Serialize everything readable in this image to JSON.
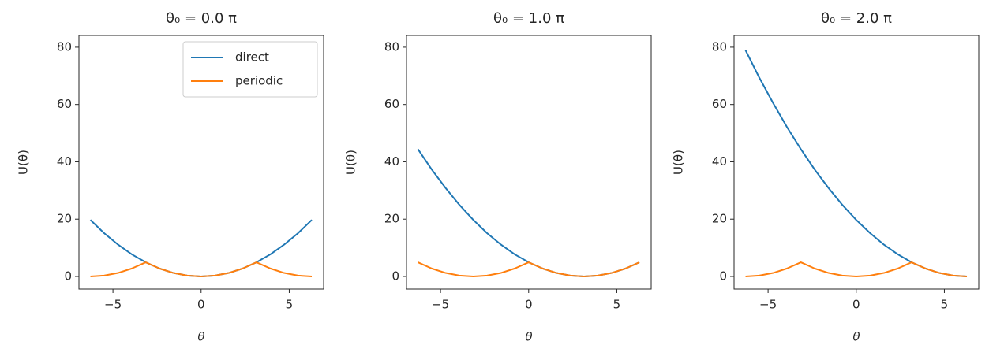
{
  "chart_data": [
    {
      "type": "line",
      "title": "θ₀ = 0.0 π",
      "xlabel": "θ",
      "ylabel": "U(θ)",
      "x": [
        -6.28,
        -5.5,
        -4.71,
        -3.93,
        -3.14,
        -2.36,
        -1.57,
        -0.79,
        0,
        0.79,
        1.57,
        2.36,
        3.14,
        3.93,
        4.71,
        5.5,
        6.28
      ],
      "series": [
        {
          "name": "direct",
          "color": "#1f77b4",
          "values": [
            19.74,
            15.11,
            11.1,
            7.71,
            4.93,
            2.78,
            1.23,
            0.31,
            0,
            0.31,
            1.23,
            2.78,
            4.93,
            7.71,
            11.1,
            15.11,
            19.74
          ]
        },
        {
          "name": "periodic",
          "color": "#ff7f0e",
          "values": [
            0,
            0.31,
            1.23,
            2.78,
            4.93,
            2.78,
            1.23,
            0.31,
            0,
            0.31,
            1.23,
            2.78,
            4.93,
            2.78,
            1.23,
            0.31,
            0
          ]
        }
      ],
      "xlim": [
        -6.93,
        6.95
      ],
      "ylim": [
        -4.4,
        84.1
      ],
      "xticks": [
        {
          "value": -5,
          "label": "−5"
        },
        0,
        5
      ],
      "yticks": [
        0,
        20,
        40,
        60,
        80
      ],
      "legend": "upper right"
    },
    {
      "type": "line",
      "title": "θ₀ = 1.0 π",
      "xlabel": "θ",
      "ylabel": "U(θ)",
      "x": [
        -6.28,
        -5.5,
        -4.71,
        -3.93,
        -3.14,
        -2.36,
        -1.57,
        -0.79,
        0,
        0.79,
        1.57,
        2.36,
        3.14,
        3.93,
        4.71,
        5.5,
        6.28
      ],
      "series": [
        {
          "name": "direct",
          "color": "#1f77b4",
          "values": [
            44.41,
            37.32,
            30.84,
            24.98,
            19.74,
            15.11,
            11.1,
            7.71,
            4.93,
            2.78,
            1.23,
            0.31,
            0,
            0.31,
            1.23,
            2.78,
            4.93
          ]
        },
        {
          "name": "periodic",
          "color": "#ff7f0e",
          "values": [
            4.93,
            2.78,
            1.23,
            0.31,
            0,
            0.31,
            1.23,
            2.78,
            4.93,
            2.78,
            1.23,
            0.31,
            0,
            0.31,
            1.23,
            2.78,
            4.93
          ]
        }
      ],
      "xlim": [
        -6.93,
        6.95
      ],
      "ylim": [
        -4.4,
        84.1
      ],
      "xticks": [
        {
          "value": -5,
          "label": "−5"
        },
        0,
        5
      ],
      "yticks": [
        0,
        20,
        40,
        60,
        80
      ]
    },
    {
      "type": "line",
      "title": "θ₀ = 2.0 π",
      "xlabel": "θ",
      "ylabel": "U(θ)",
      "x": [
        -6.28,
        -5.5,
        -4.71,
        -3.93,
        -3.14,
        -2.36,
        -1.57,
        -0.79,
        0,
        0.79,
        1.57,
        2.36,
        3.14,
        3.93,
        4.71,
        5.5,
        6.28
      ],
      "series": [
        {
          "name": "direct",
          "color": "#1f77b4",
          "values": [
            78.96,
            69.39,
            60.45,
            52.14,
            44.41,
            37.32,
            30.84,
            24.98,
            19.74,
            15.11,
            11.1,
            7.71,
            4.93,
            2.78,
            1.23,
            0.31,
            0
          ]
        },
        {
          "name": "periodic",
          "color": "#ff7f0e",
          "values": [
            0,
            0.31,
            1.23,
            2.78,
            4.93,
            2.78,
            1.23,
            0.31,
            0,
            0.31,
            1.23,
            2.78,
            4.93,
            2.78,
            1.23,
            0.31,
            0
          ]
        }
      ],
      "xlim": [
        -6.93,
        6.95
      ],
      "ylim": [
        -4.4,
        84.1
      ],
      "xticks": [
        {
          "value": -5,
          "label": "−5"
        },
        0,
        5
      ],
      "yticks": [
        0,
        20,
        40,
        60,
        80
      ]
    }
  ]
}
